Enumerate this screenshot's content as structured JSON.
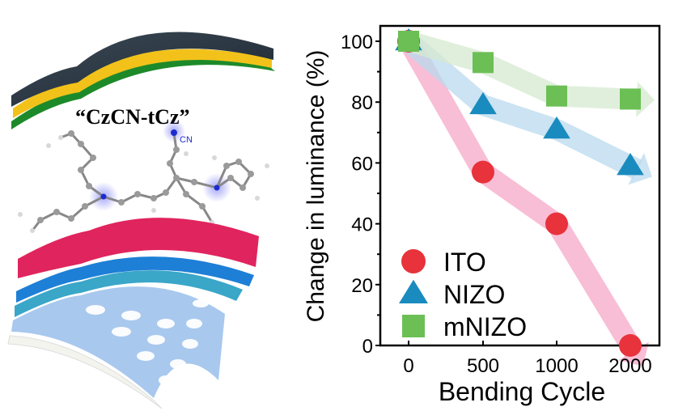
{
  "illustration": {
    "molecule_label": "“CzCN-tCz”",
    "cn_label": "CN",
    "layer_colors": [
      "#2b3a46",
      "#f2c21a",
      "#1d8a2a",
      "#e0245e",
      "#1e7fd6",
      "#3aa6c8",
      "#a9c8ee",
      "#f4f4ee"
    ]
  },
  "chart_data": {
    "type": "scatter",
    "title": "",
    "xlabel": "Bending Cycle",
    "ylabel": "Change in luminance (%)",
    "categories": [
      "0",
      "500",
      "1000",
      "2000"
    ],
    "ylim": [
      0,
      105
    ],
    "yticks": [
      0,
      20,
      40,
      60,
      80,
      100
    ],
    "legend_position": "bottom-left",
    "series": [
      {
        "name": "ITO",
        "marker": "circle",
        "color": "#e8323c",
        "arrow_color": "#f6a8c8",
        "values": [
          100,
          57,
          40,
          0
        ]
      },
      {
        "name": "NIZO",
        "marker": "triangle",
        "color": "#1a8bbf",
        "arrow_color": "#b9d9ee",
        "values": [
          100,
          79,
          71,
          59
        ]
      },
      {
        "name": "mNIZO",
        "marker": "square",
        "color": "#6cbf55",
        "arrow_color": "#d6ead0",
        "values": [
          100,
          93,
          82,
          81
        ]
      }
    ]
  }
}
